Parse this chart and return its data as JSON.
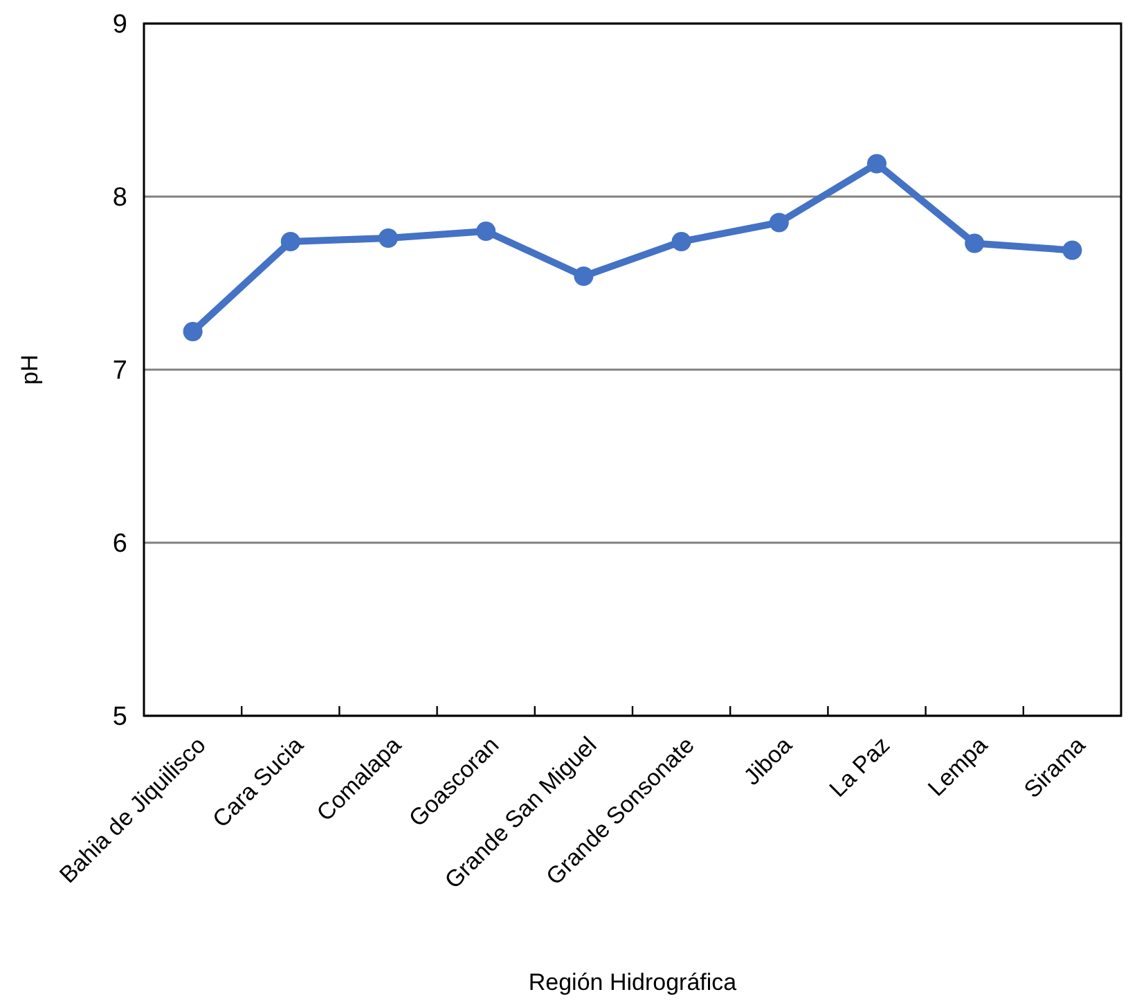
{
  "chart_data": {
    "type": "line",
    "xlabel": "Región Hidrográfica",
    "ylabel": "pH",
    "categories": [
      "Bahia de Jiquilisco",
      "Cara Sucia",
      "Comalapa",
      "Goascoran",
      "Grande San Miguel",
      "Grande Sonsonate",
      "Jiboa",
      "La Paz",
      "Lempa",
      "Sirama"
    ],
    "series": [
      {
        "color": "#4472c4",
        "values": [
          7.22,
          7.74,
          7.76,
          7.8,
          7.54,
          7.74,
          7.85,
          8.19,
          7.73,
          7.69
        ]
      }
    ],
    "ylim": [
      5,
      9
    ],
    "yticks": [
      5,
      6,
      7,
      8,
      9
    ],
    "grid": "y",
    "marker": "circle",
    "line_style": "solid"
  }
}
